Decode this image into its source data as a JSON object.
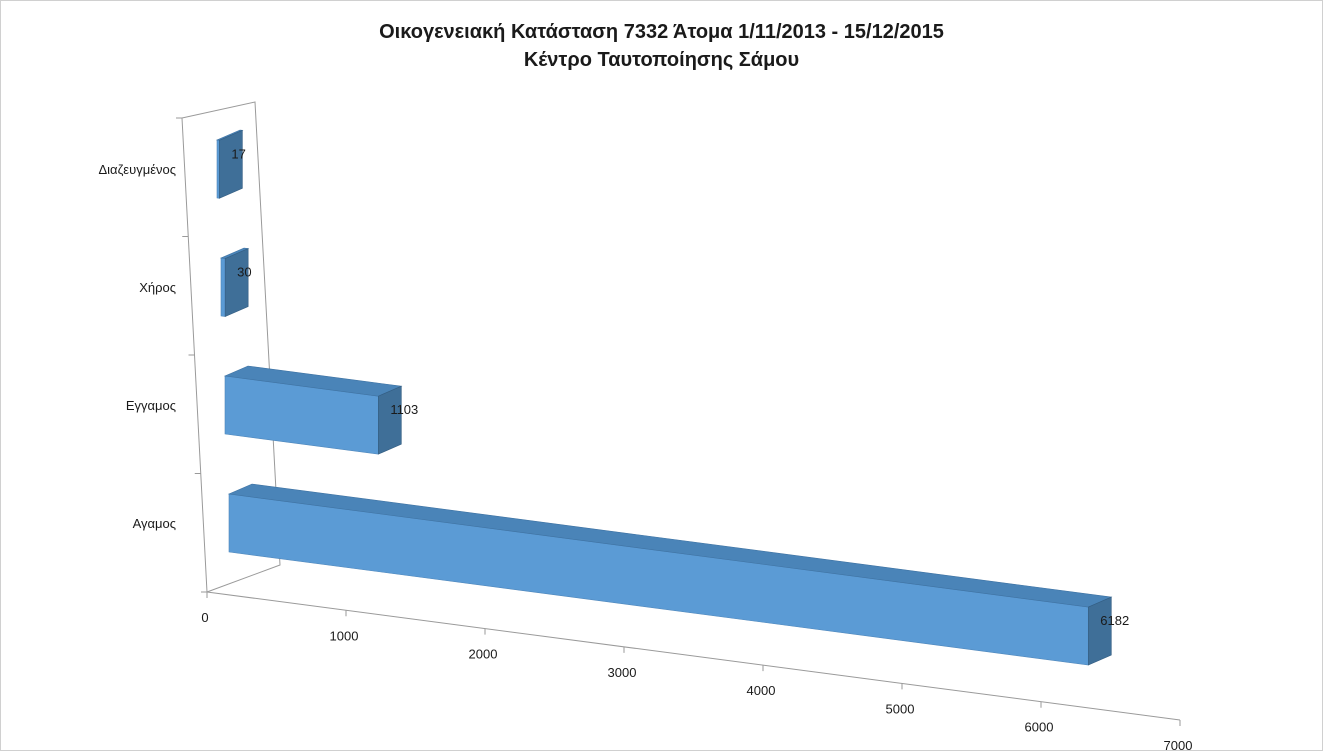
{
  "chart_data": {
    "type": "bar",
    "orientation": "horizontal",
    "three_d": true,
    "title": "Οικογενειακή Κατάσταση 7332 Άτομα 1/11/2013 - 15/12/2015",
    "subtitle": "Κέντρο Ταυτοποίησης Σάμου",
    "categories": [
      "Αγαμος",
      "Εγγαμος",
      "Χήρος",
      "Διαζευγμένος"
    ],
    "values": [
      6182,
      1103,
      30,
      17
    ],
    "data_labels": [
      "6182",
      "1103",
      "30",
      "17"
    ],
    "xlim": [
      0,
      7000
    ],
    "x_ticks": [
      0,
      1000,
      2000,
      3000,
      4000,
      5000,
      6000,
      7000
    ],
    "x_tick_labels": [
      "0",
      "1000",
      "2000",
      "3000",
      "4000",
      "5000",
      "6000",
      "7000"
    ],
    "grid": false,
    "legend": "none",
    "colors": {
      "bar_front": "#5b9bd5",
      "bar_top": "#4a84b8",
      "bar_side": "#3f6f98",
      "axis": "#9a9a9a"
    }
  }
}
